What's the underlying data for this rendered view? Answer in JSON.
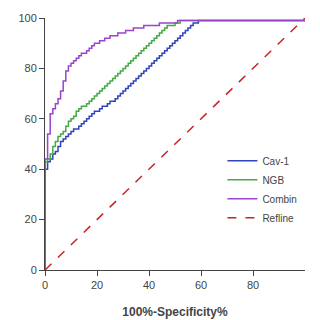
{
  "chart_data": {
    "type": "line",
    "xlabel": "100%-Specificity%",
    "xlim": [
      0,
      100
    ],
    "ylim": [
      0,
      100
    ],
    "xticks": [
      0,
      20,
      40,
      60,
      80
    ],
    "yticks": [
      0,
      20,
      40,
      60,
      80,
      100
    ],
    "grid": false,
    "legend": "right",
    "series": [
      {
        "name": "Cav-1",
        "color": "#3344bb",
        "type": "step",
        "x": [
          0,
          0,
          1,
          1,
          2,
          2,
          3,
          3,
          4,
          4,
          5,
          5,
          6,
          6,
          7,
          7,
          8,
          8,
          9,
          9,
          10,
          10,
          11,
          11,
          12,
          13,
          14,
          15,
          16,
          17,
          18,
          19,
          20,
          21,
          22,
          23,
          24,
          25,
          26,
          27,
          28,
          29,
          30,
          31,
          32,
          33,
          34,
          35,
          36,
          37,
          38,
          39,
          40,
          41,
          42,
          43,
          44,
          45,
          46,
          47,
          48,
          49,
          50,
          51,
          52,
          53,
          54,
          55,
          56,
          57,
          58,
          59,
          60,
          61,
          62,
          63,
          64,
          100
        ],
        "values": [
          0,
          40,
          40,
          43,
          43,
          44,
          44,
          46,
          46,
          47,
          47,
          49,
          49,
          51,
          51,
          52,
          52,
          53,
          53,
          54,
          54,
          55,
          55,
          56,
          56,
          57,
          58,
          59,
          60,
          61,
          62,
          63,
          63,
          64,
          65,
          65,
          66,
          67,
          67,
          68,
          69,
          70,
          71,
          72,
          73,
          74,
          75,
          76,
          77,
          78,
          79,
          80,
          81,
          82,
          83,
          84,
          85,
          86,
          87,
          88,
          89,
          90,
          91,
          92,
          93,
          94,
          95,
          96,
          97,
          98,
          98,
          99,
          99,
          99,
          99,
          99,
          99,
          99
        ]
      },
      {
        "name": "NGB",
        "color": "#44aa44",
        "type": "step",
        "x": [
          0,
          0,
          1,
          1,
          2,
          2,
          3,
          3,
          4,
          4,
          5,
          5,
          6,
          6,
          7,
          7,
          8,
          8,
          9,
          9,
          10,
          10,
          11,
          11,
          12,
          12,
          13,
          13,
          14,
          14,
          15,
          16,
          17,
          18,
          19,
          20,
          21,
          22,
          23,
          24,
          25,
          26,
          27,
          28,
          29,
          30,
          31,
          32,
          33,
          34,
          35,
          36,
          37,
          38,
          39,
          40,
          41,
          42,
          43,
          44,
          45,
          46,
          47,
          48,
          49,
          50,
          51,
          52,
          53,
          54,
          55,
          56,
          57,
          58,
          59,
          60,
          61,
          62,
          63,
          64,
          100
        ],
        "values": [
          0,
          43,
          43,
          44,
          44,
          46,
          46,
          49,
          49,
          51,
          51,
          53,
          53,
          54,
          54,
          55,
          55,
          57,
          57,
          59,
          59,
          60,
          60,
          61,
          61,
          63,
          63,
          64,
          64,
          65,
          65,
          66,
          67,
          68,
          69,
          70,
          71,
          72,
          73,
          74,
          75,
          76,
          77,
          78,
          79,
          80,
          81,
          82,
          83,
          84,
          85,
          86,
          87,
          88,
          89,
          90,
          91,
          92,
          93,
          94,
          95,
          96,
          97,
          97,
          97,
          98,
          98,
          99,
          99,
          99,
          99,
          99,
          99,
          99,
          99,
          99,
          99,
          99,
          99,
          99,
          99
        ]
      },
      {
        "name": "Combin",
        "color": "#9944cc",
        "type": "step",
        "x": [
          0,
          0,
          1,
          1,
          2,
          2,
          3,
          3,
          4,
          4,
          5,
          5,
          6,
          6,
          7,
          7,
          8,
          8,
          9,
          9,
          10,
          10,
          11,
          11,
          12,
          12,
          13,
          13,
          14,
          14,
          15,
          16,
          17,
          18,
          19,
          20,
          21,
          22,
          23,
          24,
          25,
          26,
          27,
          28,
          29,
          30,
          31,
          32,
          33,
          34,
          35,
          36,
          37,
          38,
          39,
          40,
          41,
          42,
          43,
          44,
          45,
          46,
          47,
          48,
          49,
          50,
          51,
          52,
          53,
          54,
          55,
          56,
          57,
          58,
          59,
          60,
          61,
          62,
          63,
          100
        ],
        "values": [
          0,
          44,
          44,
          54,
          54,
          62,
          62,
          64,
          64,
          66,
          66,
          68,
          68,
          71,
          71,
          75,
          75,
          79,
          79,
          81,
          81,
          82,
          82,
          83,
          83,
          84,
          84,
          85,
          85,
          86,
          86,
          87,
          88,
          89,
          90,
          90,
          91,
          91,
          92,
          92,
          93,
          93,
          93,
          94,
          94,
          94,
          95,
          95,
          95,
          96,
          96,
          96,
          96,
          97,
          97,
          97,
          97,
          97,
          97,
          98,
          98,
          98,
          98,
          98,
          98,
          98,
          99,
          99,
          99,
          99,
          99,
          99,
          99,
          99,
          99,
          99,
          99,
          99,
          99,
          99
        ]
      },
      {
        "name": "Refline",
        "color": "#cc2222",
        "type": "line",
        "line_style": "dashed",
        "x": [
          0,
          100
        ],
        "values": [
          0,
          100
        ]
      }
    ]
  }
}
